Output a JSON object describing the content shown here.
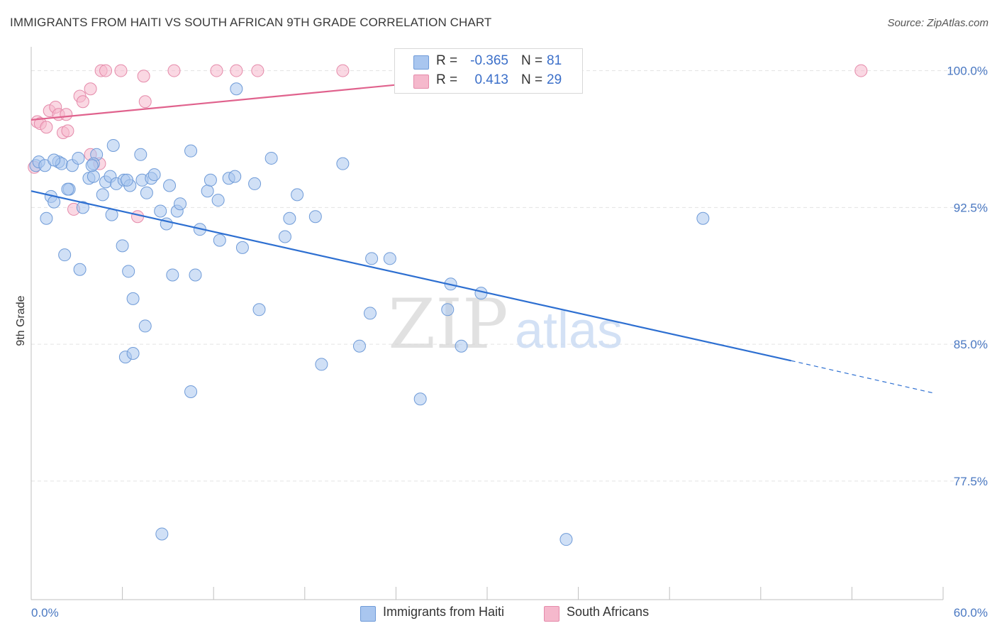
{
  "header": {
    "title": "IMMIGRANTS FROM HAITI VS SOUTH AFRICAN 9TH GRADE CORRELATION CHART",
    "source": "Source: ZipAtlas.com"
  },
  "watermark": {
    "zip": "ZIP",
    "atlas": "atlas"
  },
  "legend": {
    "rows": [
      {
        "r_label": "R =",
        "r_value": "-0.365",
        "n_label": "N =",
        "n_value": "81",
        "color": "#a9c6ef"
      },
      {
        "r_label": "R =",
        "r_value": "0.413",
        "n_label": "N =",
        "n_value": "29",
        "color": "#f5b8cc"
      }
    ]
  },
  "bottom_legend": {
    "items": [
      {
        "label": "Immigrants from Haiti",
        "color": "#a9c6ef"
      },
      {
        "label": "South Africans",
        "color": "#f5b8cc"
      }
    ]
  },
  "chart_data": {
    "type": "scatter",
    "title": "IMMIGRANTS FROM HAITI VS SOUTH AFRICAN 9TH GRADE CORRELATION CHART",
    "xlabel": "",
    "ylabel": "9th Grade",
    "xlim": [
      0,
      60
    ],
    "ylim": [
      71.0,
      100.8
    ],
    "x_tick_labels": [
      {
        "value": 0,
        "label": "0.0%"
      },
      {
        "value": 60,
        "label": "60.0%"
      }
    ],
    "x_minor_ticks": [
      6,
      12,
      18,
      24,
      30,
      36,
      42,
      48,
      54,
      60
    ],
    "y_tick_labels": [
      {
        "value": 100.0,
        "label": "100.0%"
      },
      {
        "value": 92.5,
        "label": "92.5%"
      },
      {
        "value": 85.0,
        "label": "85.0%"
      },
      {
        "value": 77.5,
        "label": "77.5%"
      }
    ],
    "grid": true,
    "legend_position": "top-center",
    "series": [
      {
        "name": "Immigrants from Haiti",
        "color": "#a9c6ef",
        "stroke": "#6f9bd8",
        "line_color": "#2d6fd1",
        "trend": {
          "x0": 0.0,
          "y0": 93.4,
          "x1": 50.0,
          "y1": 84.1,
          "dash_to_x": 59.5,
          "dash_to_y": 82.3
        },
        "points": [
          [
            0.3,
            94.8
          ],
          [
            0.5,
            95.0
          ],
          [
            0.9,
            94.8
          ],
          [
            1.3,
            93.1
          ],
          [
            1.5,
            92.8
          ],
          [
            1.0,
            91.9
          ],
          [
            1.8,
            95.0
          ],
          [
            2.0,
            94.9
          ],
          [
            2.5,
            93.5
          ],
          [
            2.7,
            94.8
          ],
          [
            2.4,
            93.5
          ],
          [
            3.1,
            95.2
          ],
          [
            3.4,
            92.5
          ],
          [
            3.2,
            89.1
          ],
          [
            2.2,
            89.9
          ],
          [
            3.8,
            94.1
          ],
          [
            4.1,
            94.2
          ],
          [
            4.3,
            95.4
          ],
          [
            4.1,
            94.9
          ],
          [
            4.7,
            93.2
          ],
          [
            4.9,
            93.9
          ],
          [
            5.2,
            94.2
          ],
          [
            5.3,
            92.1
          ],
          [
            5.4,
            95.9
          ],
          [
            5.6,
            93.8
          ],
          [
            6.1,
            94.0
          ],
          [
            6.0,
            90.4
          ],
          [
            6.5,
            93.7
          ],
          [
            6.4,
            89.0
          ],
          [
            6.7,
            87.5
          ],
          [
            6.2,
            84.3
          ],
          [
            6.7,
            84.5
          ],
          [
            7.3,
            94.0
          ],
          [
            7.5,
            86.0
          ],
          [
            7.6,
            93.3
          ],
          [
            7.2,
            95.4
          ],
          [
            7.9,
            94.1
          ],
          [
            8.1,
            94.3
          ],
          [
            8.5,
            92.3
          ],
          [
            8.9,
            91.6
          ],
          [
            9.1,
            93.7
          ],
          [
            9.3,
            88.8
          ],
          [
            9.6,
            92.3
          ],
          [
            9.8,
            92.7
          ],
          [
            10.5,
            95.6
          ],
          [
            10.8,
            88.8
          ],
          [
            11.1,
            91.3
          ],
          [
            11.6,
            93.4
          ],
          [
            11.8,
            94.0
          ],
          [
            12.3,
            92.9
          ],
          [
            12.4,
            90.7
          ],
          [
            13.0,
            94.1
          ],
          [
            13.4,
            94.2
          ],
          [
            13.9,
            90.3
          ],
          [
            14.7,
            93.8
          ],
          [
            15.0,
            86.9
          ],
          [
            15.8,
            95.2
          ],
          [
            16.7,
            90.9
          ],
          [
            17.0,
            91.9
          ],
          [
            17.5,
            93.2
          ],
          [
            18.7,
            92.0
          ],
          [
            19.1,
            83.9
          ],
          [
            20.5,
            94.9
          ],
          [
            21.6,
            84.9
          ],
          [
            22.3,
            86.7
          ],
          [
            22.4,
            89.7
          ],
          [
            23.6,
            89.7
          ],
          [
            25.6,
            82.0
          ],
          [
            27.4,
            86.9
          ],
          [
            27.6,
            88.3
          ],
          [
            28.3,
            84.9
          ],
          [
            29.6,
            87.8
          ],
          [
            8.6,
            74.6
          ],
          [
            13.5,
            99.0
          ],
          [
            10.5,
            82.4
          ],
          [
            35.2,
            74.3
          ],
          [
            44.2,
            91.9
          ],
          [
            35.0,
            99.7
          ],
          [
            4.0,
            94.8
          ],
          [
            6.3,
            94.0
          ],
          [
            1.5,
            95.1
          ]
        ]
      },
      {
        "name": "South Africans",
        "color": "#f5b8cc",
        "stroke": "#e58aaa",
        "line_color": "#e0628d",
        "trend": {
          "x0": 0.0,
          "y0": 97.3,
          "x1": 35.0,
          "y1": 100.1
        },
        "points": [
          [
            0.2,
            94.7
          ],
          [
            0.4,
            97.2
          ],
          [
            0.6,
            97.1
          ],
          [
            1.0,
            96.9
          ],
          [
            1.2,
            97.8
          ],
          [
            1.6,
            98.0
          ],
          [
            1.8,
            97.6
          ],
          [
            2.1,
            96.6
          ],
          [
            2.3,
            97.6
          ],
          [
            2.4,
            96.7
          ],
          [
            2.8,
            92.4
          ],
          [
            3.2,
            98.6
          ],
          [
            3.4,
            98.3
          ],
          [
            3.9,
            99.0
          ],
          [
            3.9,
            95.4
          ],
          [
            4.5,
            94.9
          ],
          [
            4.6,
            100.0
          ],
          [
            4.9,
            100.0
          ],
          [
            5.9,
            100.0
          ],
          [
            7.0,
            92.0
          ],
          [
            7.5,
            98.3
          ],
          [
            7.4,
            99.7
          ],
          [
            9.4,
            100.0
          ],
          [
            12.2,
            100.0
          ],
          [
            13.5,
            100.0
          ],
          [
            14.9,
            100.0
          ],
          [
            20.5,
            100.0
          ],
          [
            33.2,
            99.9
          ],
          [
            54.6,
            100.0
          ]
        ]
      }
    ]
  }
}
